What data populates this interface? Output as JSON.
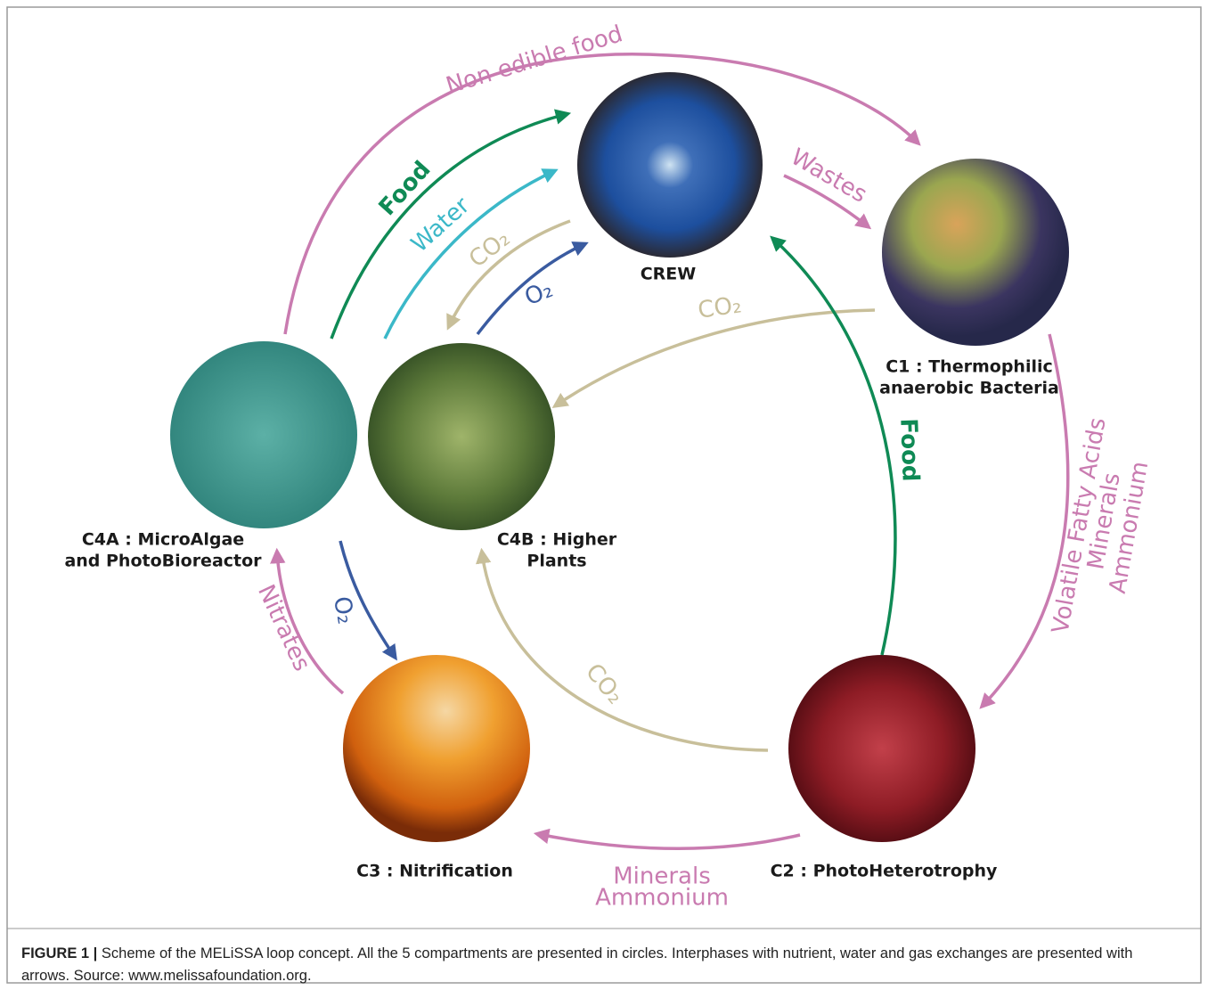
{
  "nodes": [
    {
      "label": [
        "CREW"
      ]
    },
    {
      "label": [
        "C1 : Thermophilic",
        "anaerobic Bacteria"
      ]
    },
    {
      "label": [
        "C4A : MicroAlgae",
        "and PhotoBioreactor"
      ]
    },
    {
      "label": [
        "C4B : Higher",
        "Plants"
      ]
    },
    {
      "label": [
        "C3 : Nitrification"
      ]
    },
    {
      "label": [
        "C2 : PhotoHeterotrophy"
      ]
    }
  ],
  "edges": [
    {
      "label": [
        "Non edible food"
      ]
    },
    {
      "label": [
        "Food"
      ]
    },
    {
      "label": [
        "Water"
      ]
    },
    {
      "label": [
        "CO₂"
      ]
    },
    {
      "label": [
        "O₂"
      ]
    },
    {
      "label": [
        "Wastes"
      ]
    },
    {
      "label": [
        "CO₂"
      ]
    },
    {
      "label": [
        "Volatile Fatty Acids",
        "Minerals",
        "Ammonium"
      ]
    },
    {
      "label": [
        "Food"
      ]
    },
    {
      "label": [
        "Nitrates"
      ]
    },
    {
      "label": [
        "O₂"
      ]
    },
    {
      "label": [
        "CO₂"
      ]
    },
    {
      "label": [
        "Minerals",
        "Ammonium"
      ]
    }
  ],
  "caption": {
    "label": "FIGURE 1 |",
    "text": "Scheme of the MELiSSA loop concept. All the 5 compartments are presented in circles. Interphases with nutrient, water and gas exchanges are presented with arrows. Source: www.melissafoundation.org."
  }
}
